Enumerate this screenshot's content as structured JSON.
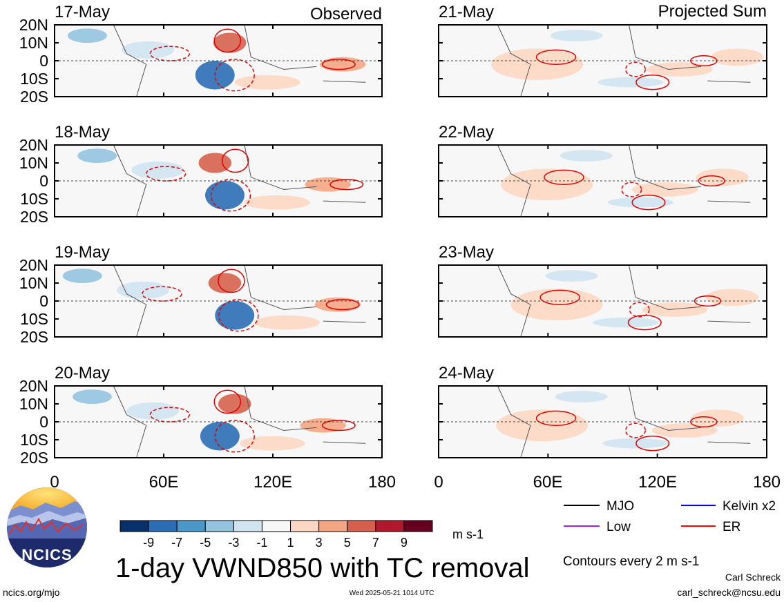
{
  "figure": {
    "title": "1-day VWND850 with TC removal",
    "units": "m s-1",
    "contour_note": "Contours every 2 m s-1",
    "author": "Carl Schreck",
    "email": "carl_schreck@ncsu.edu",
    "website": "ncics.org/mjo",
    "timestamp": "Wed 2025-05-21 1014 UTC",
    "logo_text": "NCICS"
  },
  "columns": {
    "left_title": "Observed",
    "right_title": "Projected Sum"
  },
  "panels": {
    "left": [
      {
        "date": "17-May"
      },
      {
        "date": "18-May"
      },
      {
        "date": "19-May"
      },
      {
        "date": "20-May"
      }
    ],
    "right": [
      {
        "date": "21-May"
      },
      {
        "date": "22-May"
      },
      {
        "date": "23-May"
      },
      {
        "date": "24-May"
      }
    ]
  },
  "axes": {
    "lat_labels": [
      "20N",
      "10N",
      "0",
      "10S",
      "20S"
    ],
    "lon_labels": [
      "0",
      "60E",
      "120E",
      "180"
    ]
  },
  "colorbar": {
    "labels": [
      "-9",
      "-7",
      "-5",
      "-3",
      "-1",
      "1",
      "3",
      "5",
      "7",
      "9"
    ],
    "colors": [
      "#08306b",
      "#2b6db5",
      "#4a98c9",
      "#94c3df",
      "#cfe3f0",
      "#f7f7f7",
      "#fdd7c3",
      "#f4a582",
      "#d6604d",
      "#b2182b",
      "#67001f"
    ]
  },
  "legend": [
    {
      "label": "MJO",
      "color": "#000000"
    },
    {
      "label": "Kelvin x2",
      "color": "#0000ff"
    },
    {
      "label": "Low",
      "color": "#a020f0"
    },
    {
      "label": "ER",
      "color": "#ff0000"
    }
  ]
}
